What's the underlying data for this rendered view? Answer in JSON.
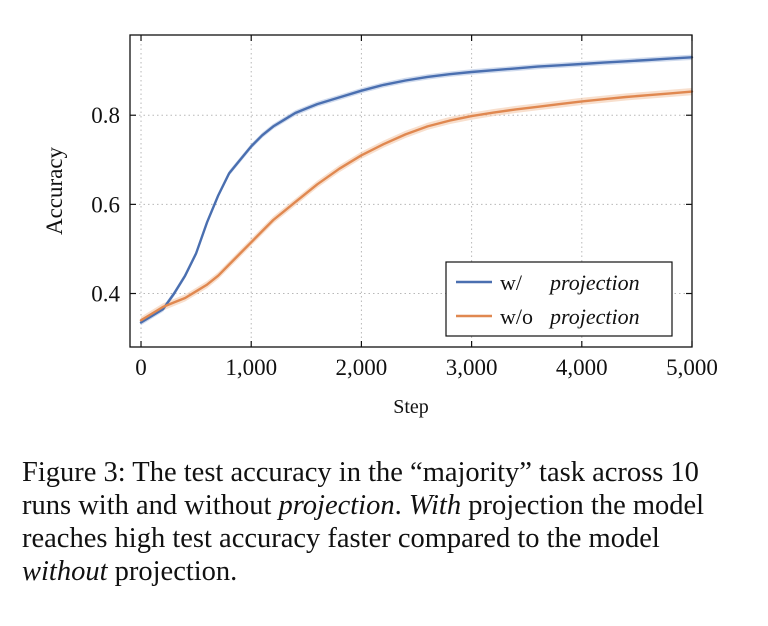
{
  "chart_data": {
    "type": "line",
    "xlabel": "Step",
    "ylabel": "Accuracy",
    "xlim": [
      -100,
      5000
    ],
    "ylim": [
      0.28,
      0.98
    ],
    "xticks": [
      0,
      1000,
      2000,
      3000,
      4000,
      5000
    ],
    "xtick_labels": [
      "0",
      "1,000",
      "2,000",
      "3,000",
      "4,000",
      "5,000"
    ],
    "yticks": [
      0.4,
      0.6,
      0.8
    ],
    "ytick_labels": [
      "0.4",
      "0.6",
      "0.8"
    ],
    "grid": true,
    "legend_position": "bottom-right",
    "series": [
      {
        "name_prefix": "w/",
        "name": "projection",
        "color": "#4a6fb0",
        "band_color": "#a9bde0",
        "x": [
          0,
          100,
          200,
          300,
          400,
          500,
          600,
          700,
          800,
          900,
          1000,
          1100,
          1200,
          1300,
          1400,
          1500,
          1600,
          1800,
          2000,
          2200,
          2400,
          2600,
          2800,
          3000,
          3200,
          3400,
          3600,
          3800,
          4000,
          4200,
          4400,
          4600,
          4800,
          5000
        ],
        "y": [
          0.335,
          0.35,
          0.365,
          0.4,
          0.44,
          0.49,
          0.56,
          0.62,
          0.67,
          0.7,
          0.73,
          0.755,
          0.775,
          0.79,
          0.805,
          0.815,
          0.825,
          0.84,
          0.855,
          0.868,
          0.878,
          0.886,
          0.892,
          0.897,
          0.901,
          0.905,
          0.909,
          0.912,
          0.915,
          0.918,
          0.921,
          0.924,
          0.927,
          0.93
        ],
        "band": 0.006
      },
      {
        "name_prefix": "w/o",
        "name": "projection",
        "color": "#e08850",
        "band_color": "#f3c4a4",
        "x": [
          0,
          100,
          200,
          300,
          400,
          500,
          600,
          700,
          800,
          900,
          1000,
          1100,
          1200,
          1300,
          1400,
          1500,
          1600,
          1800,
          2000,
          2200,
          2400,
          2600,
          2800,
          3000,
          3200,
          3400,
          3600,
          3800,
          4000,
          4200,
          4400,
          4600,
          4800,
          5000
        ],
        "y": [
          0.34,
          0.355,
          0.37,
          0.38,
          0.39,
          0.405,
          0.42,
          0.44,
          0.465,
          0.49,
          0.515,
          0.54,
          0.565,
          0.585,
          0.605,
          0.625,
          0.645,
          0.68,
          0.71,
          0.735,
          0.757,
          0.775,
          0.788,
          0.798,
          0.806,
          0.813,
          0.819,
          0.825,
          0.831,
          0.836,
          0.841,
          0.845,
          0.849,
          0.853
        ],
        "band": 0.008
      }
    ]
  },
  "caption": {
    "lead": "Figure 3: The test accuracy in the “majority” task across 10 runs with and without ",
    "em1": "projection",
    "mid1": ". ",
    "em2": "With",
    "mid2": " projection the model reaches high test accuracy faster compared to the model ",
    "em3": "without",
    "tail": " projection."
  }
}
